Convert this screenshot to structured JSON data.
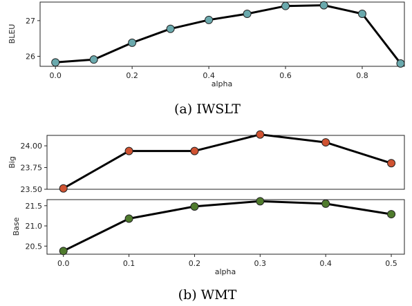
{
  "chart_data": [
    {
      "type": "line",
      "x": [
        0.0,
        0.1,
        0.2,
        0.3,
        0.4,
        0.5,
        0.6,
        0.7,
        0.8,
        0.9
      ],
      "series": [
        {
          "values": [
            25.83,
            25.91,
            26.38,
            26.77,
            27.02,
            27.19,
            27.41,
            27.43,
            27.19,
            25.8
          ],
          "color": "#6aa9ad"
        }
      ],
      "xlabel": "alpha",
      "ylabel": "BLEU",
      "xlim": [
        -0.04,
        0.91
      ],
      "ylim": [
        25.72,
        27.52
      ],
      "xticks": [
        0.0,
        0.2,
        0.4,
        0.6,
        0.8
      ],
      "xtick_labels": [
        "0.0",
        "0.2",
        "0.4",
        "0.6",
        "0.8"
      ],
      "yticks": [
        26,
        27
      ],
      "ytick_labels": [
        "26",
        "27"
      ],
      "caption": "(a)  IWSLT",
      "grid": false
    },
    {
      "type": "line",
      "x": [
        0.0,
        0.1,
        0.2,
        0.3,
        0.4,
        0.5
      ],
      "series": [
        {
          "values": [
            23.51,
            23.94,
            23.94,
            24.13,
            24.04,
            23.8
          ],
          "color": "#d05332"
        }
      ],
      "ylabel": "Big",
      "xlim": [
        -0.025,
        0.52
      ],
      "ylim": [
        23.5,
        24.12
      ],
      "yticks": [
        23.5,
        23.75,
        24.0
      ],
      "ytick_labels": [
        "23.50",
        "23.75",
        "24.00"
      ],
      "grid": false
    },
    {
      "type": "line",
      "x": [
        0.0,
        0.1,
        0.2,
        0.3,
        0.4,
        0.5
      ],
      "series": [
        {
          "values": [
            20.38,
            21.18,
            21.48,
            21.61,
            21.55,
            21.29
          ],
          "color": "#4f7b2d"
        }
      ],
      "xlabel": "alpha",
      "ylabel": "Base",
      "xlim": [
        -0.025,
        0.52
      ],
      "ylim": [
        20.3,
        21.65
      ],
      "xticks": [
        0.0,
        0.1,
        0.2,
        0.3,
        0.4,
        0.5
      ],
      "xtick_labels": [
        "0.0",
        "0.1",
        "0.2",
        "0.3",
        "0.4",
        "0.5"
      ],
      "yticks": [
        20.5,
        21.0,
        21.5
      ],
      "ytick_labels": [
        "20.5",
        "21.0",
        "21.5"
      ],
      "caption": "(b)  WMT",
      "grid": false
    }
  ]
}
